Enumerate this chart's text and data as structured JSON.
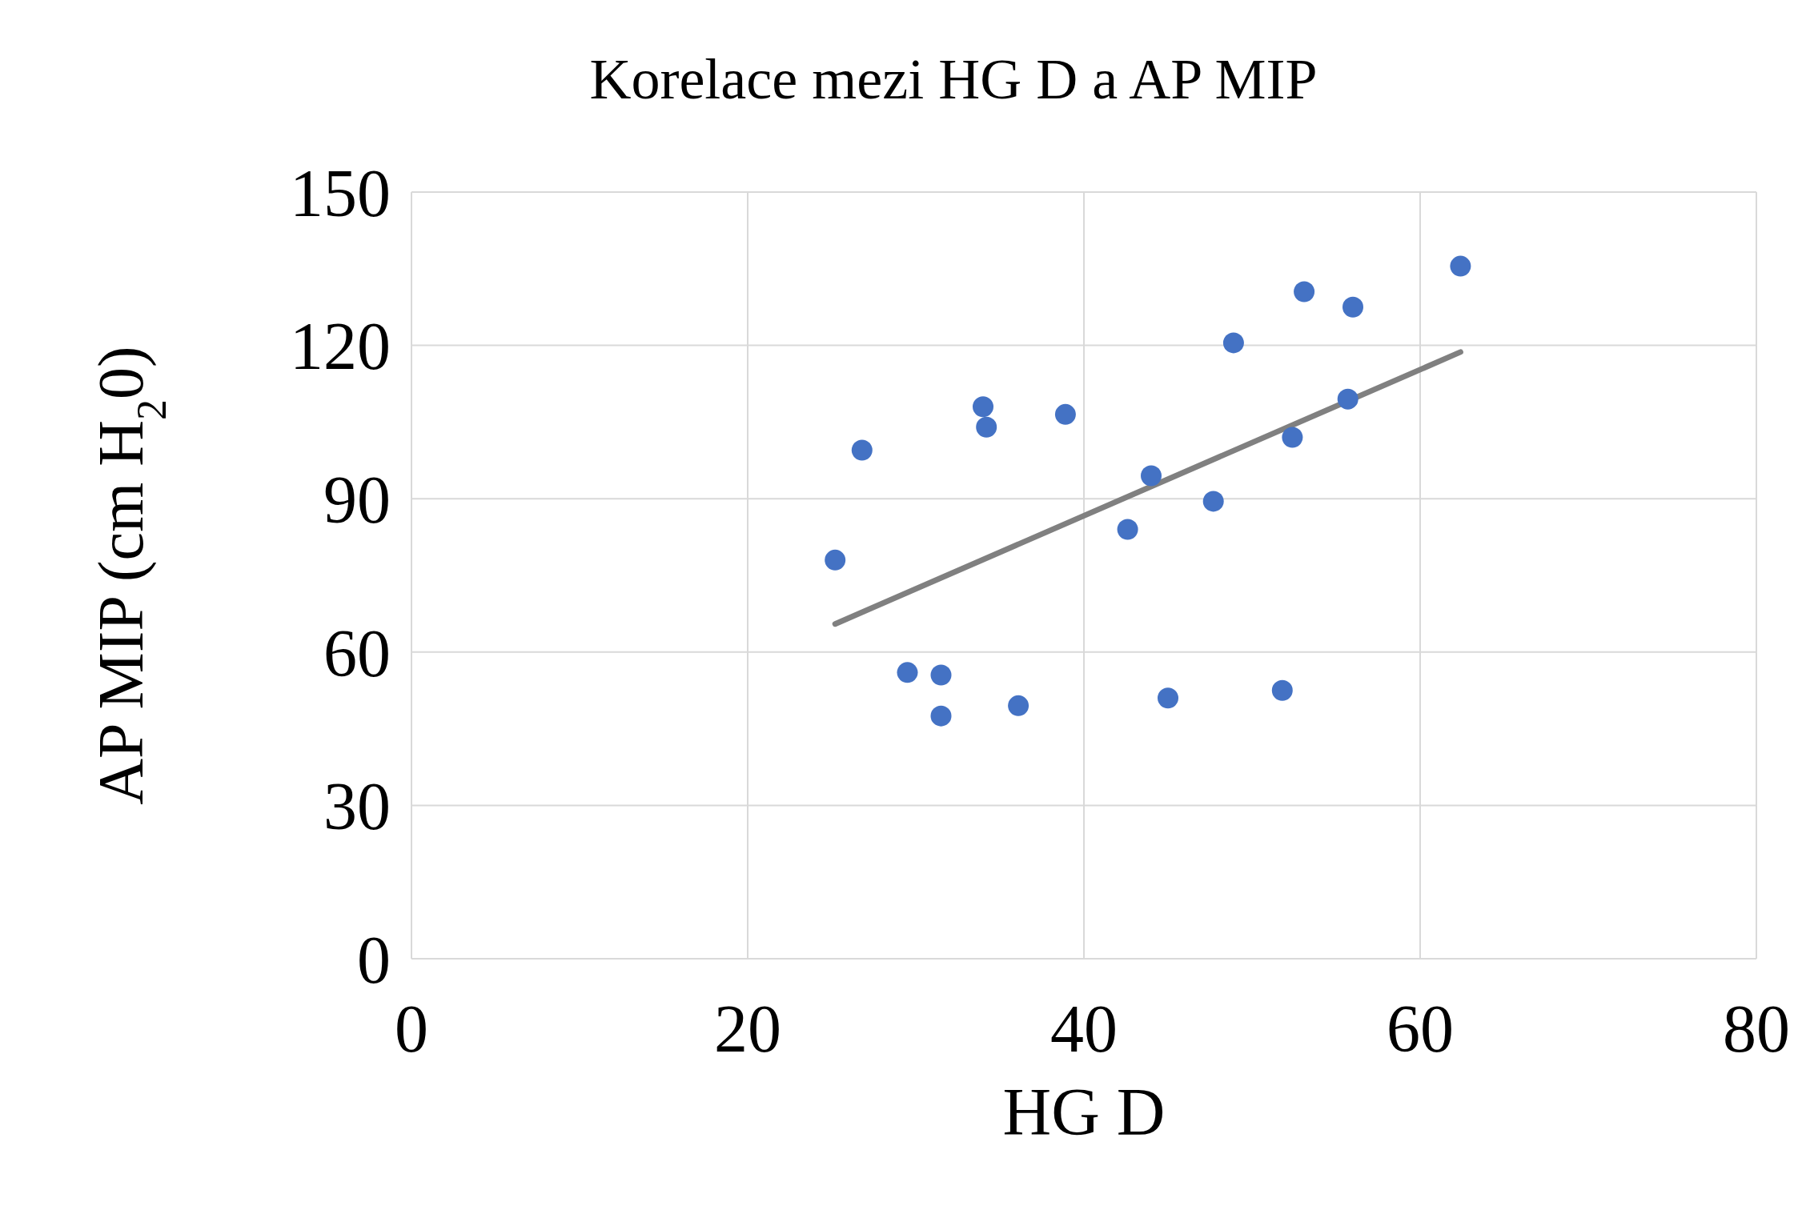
{
  "chart_data": {
    "type": "scatter",
    "title": "Korelace mezi HG D a AP MIP",
    "xlabel": "HG D",
    "ylabel": "AP MIP (cm H$_{2}$0)",
    "xlim": [
      0,
      80
    ],
    "xticks": [
      0,
      20,
      40,
      60,
      80
    ],
    "ylim": [
      0,
      150
    ],
    "yticks": [
      0,
      30,
      60,
      90,
      120,
      150
    ],
    "grid": true,
    "legend": false,
    "series": [
      {
        "marker": "circle",
        "color": "#4472c4",
        "x": [
          25.2,
          26.8,
          29.5,
          31.5,
          31.5,
          34.0,
          34.2,
          36.1,
          38.9,
          42.6,
          44.0,
          45.0,
          47.7,
          48.9,
          51.8,
          52.4,
          53.1,
          55.7,
          56.0,
          62.4
        ],
        "values": [
          78,
          99.5,
          56,
          55.5,
          47.5,
          108,
          104,
          49.5,
          106.5,
          84,
          94.5,
          51,
          89.5,
          120.5,
          52.5,
          102,
          130.5,
          109.5,
          127.5,
          135.5
        ]
      },
      {
        "type": "line",
        "marker": "none",
        "color": "#808080",
        "line_style": "solid",
        "x": [
          25.2,
          62.4
        ],
        "values": [
          65.5,
          118.7
        ]
      }
    ]
  }
}
